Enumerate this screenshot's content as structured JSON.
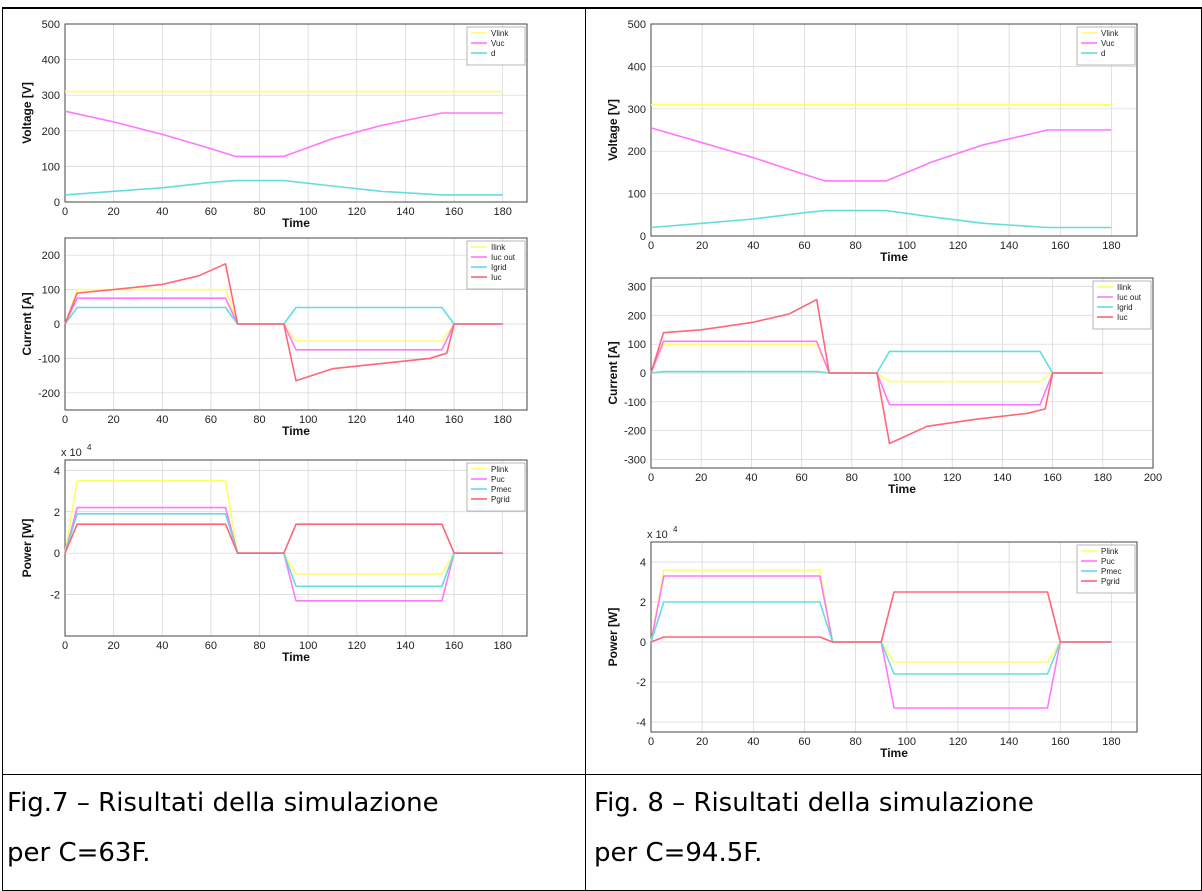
{
  "captions": {
    "left": {
      "line1": "Fig.7 – Risultati della simulazione",
      "line2": "per C=63F."
    },
    "right": {
      "line1": "Fig. 8 – Risultati della simulazione",
      "line2": "per C=94.5F."
    }
  },
  "chart_data": [
    {
      "id": "fig7-voltage",
      "type": "line",
      "xlabel": "Time",
      "ylabel": "Voltage [V]",
      "xlim": [
        0,
        190
      ],
      "ylim": [
        0,
        500
      ],
      "xticks": [
        0,
        20,
        40,
        60,
        80,
        100,
        120,
        140,
        160,
        180
      ],
      "yticks": [
        0,
        100,
        200,
        300,
        400,
        500
      ],
      "series": [
        {
          "name": "Vlink",
          "color": "#ffff66",
          "x": [
            0,
            180
          ],
          "y": [
            310,
            310
          ]
        },
        {
          "name": "Vuc",
          "color": "#ff77ff",
          "x": [
            0,
            20,
            40,
            60,
            70,
            90,
            110,
            130,
            155,
            180
          ],
          "y": [
            255,
            225,
            190,
            150,
            128,
            128,
            178,
            215,
            250,
            250
          ]
        },
        {
          "name": "d",
          "color": "#66dddd",
          "x": [
            0,
            20,
            40,
            60,
            70,
            90,
            110,
            130,
            155,
            180
          ],
          "y": [
            20,
            30,
            40,
            55,
            60,
            60,
            45,
            30,
            20,
            20
          ]
        }
      ]
    },
    {
      "id": "fig7-current",
      "type": "line",
      "xlabel": "Time",
      "ylabel": "Current [A]",
      "xlim": [
        0,
        190
      ],
      "ylim": [
        -250,
        250
      ],
      "xticks": [
        0,
        20,
        40,
        60,
        80,
        100,
        120,
        140,
        160,
        180
      ],
      "yticks": [
        -200,
        -100,
        0,
        100,
        200
      ],
      "series": [
        {
          "name": "Ilink",
          "color": "#ffff66",
          "x": [
            0,
            5,
            66,
            71,
            90,
            95,
            155,
            160,
            180
          ],
          "y": [
            0,
            100,
            100,
            0,
            0,
            -50,
            -50,
            0,
            0
          ]
        },
        {
          "name": "Iuc out",
          "color": "#ff77ff",
          "x": [
            0,
            5,
            66,
            71,
            90,
            95,
            155,
            160,
            180
          ],
          "y": [
            0,
            75,
            75,
            0,
            0,
            -75,
            -75,
            0,
            0
          ]
        },
        {
          "name": "Igrid",
          "color": "#66dddd",
          "x": [
            0,
            5,
            66,
            71,
            90,
            95,
            155,
            160,
            180
          ],
          "y": [
            0,
            48,
            48,
            0,
            0,
            48,
            48,
            0,
            0
          ]
        },
        {
          "name": "Iuc",
          "color": "#ff6677",
          "x": [
            0,
            5,
            20,
            40,
            55,
            66,
            71,
            90,
            95,
            110,
            130,
            150,
            157,
            160,
            180
          ],
          "y": [
            0,
            90,
            100,
            115,
            140,
            175,
            0,
            0,
            -165,
            -130,
            -115,
            -100,
            -85,
            0,
            0
          ]
        }
      ]
    },
    {
      "id": "fig7-power",
      "type": "line",
      "xlabel": "Time",
      "ylabel": "Power [W]",
      "exponent": "x 10",
      "exponent_sup": "4",
      "xlim": [
        0,
        190
      ],
      "ylim": [
        -4,
        4.5
      ],
      "xticks": [
        0,
        20,
        40,
        60,
        80,
        100,
        120,
        140,
        160,
        180
      ],
      "yticks": [
        -2,
        0,
        2,
        4
      ],
      "series": [
        {
          "name": "Plink",
          "color": "#ffff66",
          "x": [
            0,
            5,
            66,
            71,
            90,
            95,
            155,
            160,
            180
          ],
          "y": [
            0,
            3.5,
            3.5,
            0,
            0,
            -1.0,
            -1.0,
            0,
            0
          ]
        },
        {
          "name": "Puc",
          "color": "#ff77ff",
          "x": [
            0,
            5,
            66,
            71,
            90,
            95,
            155,
            160,
            180
          ],
          "y": [
            0,
            2.2,
            2.2,
            0,
            0,
            -2.3,
            -2.3,
            0,
            0
          ]
        },
        {
          "name": "Pmec",
          "color": "#66dddd",
          "x": [
            0,
            5,
            66,
            71,
            90,
            95,
            155,
            160,
            180
          ],
          "y": [
            0,
            1.9,
            1.9,
            0,
            0,
            -1.6,
            -1.6,
            0,
            0
          ]
        },
        {
          "name": "Pgrid",
          "color": "#ff6677",
          "x": [
            0,
            5,
            66,
            71,
            90,
            95,
            155,
            160,
            180
          ],
          "y": [
            0,
            1.4,
            1.4,
            0,
            0,
            1.4,
            1.4,
            0,
            0
          ]
        }
      ]
    },
    {
      "id": "fig8-voltage",
      "type": "line",
      "xlabel": "Time",
      "ylabel": "Voltage [V]",
      "xlim": [
        0,
        190
      ],
      "ylim": [
        0,
        500
      ],
      "xticks": [
        0,
        20,
        40,
        60,
        80,
        100,
        120,
        140,
        160,
        180
      ],
      "yticks": [
        0,
        100,
        200,
        300,
        400,
        500
      ],
      "series": [
        {
          "name": "Vlink",
          "color": "#ffff66",
          "x": [
            0,
            180
          ],
          "y": [
            310,
            310
          ]
        },
        {
          "name": "Vuc",
          "color": "#ff77ff",
          "x": [
            0,
            20,
            40,
            60,
            68,
            92,
            110,
            130,
            155,
            180
          ],
          "y": [
            255,
            220,
            185,
            145,
            130,
            130,
            175,
            215,
            250,
            250
          ]
        },
        {
          "name": "d",
          "color": "#66dddd",
          "x": [
            0,
            20,
            40,
            60,
            68,
            92,
            110,
            130,
            155,
            180
          ],
          "y": [
            20,
            30,
            40,
            55,
            60,
            60,
            45,
            30,
            20,
            20
          ]
        }
      ]
    },
    {
      "id": "fig8-current",
      "type": "line",
      "xlabel": "Time",
      "ylabel": "Current [A]",
      "xlim": [
        0,
        200
      ],
      "ylim": [
        -330,
        330
      ],
      "xticks": [
        0,
        20,
        40,
        60,
        80,
        100,
        120,
        140,
        160,
        180,
        200
      ],
      "yticks": [
        -300,
        -200,
        -100,
        0,
        100,
        200,
        300
      ],
      "series": [
        {
          "name": "Ilink",
          "color": "#ffff66",
          "x": [
            0,
            5,
            66,
            71,
            90,
            95,
            155,
            160,
            180
          ],
          "y": [
            0,
            100,
            100,
            0,
            0,
            -30,
            -30,
            0,
            0
          ]
        },
        {
          "name": "Iuc out",
          "color": "#ff77ff",
          "x": [
            0,
            5,
            66,
            71,
            90,
            95,
            155,
            160,
            180
          ],
          "y": [
            0,
            110,
            110,
            0,
            0,
            -110,
            -110,
            0,
            0
          ]
        },
        {
          "name": "Igrid",
          "color": "#66dddd",
          "x": [
            0,
            5,
            66,
            71,
            90,
            95,
            155,
            160,
            180
          ],
          "y": [
            0,
            5,
            5,
            0,
            0,
            75,
            75,
            0,
            0
          ]
        },
        {
          "name": "Iuc",
          "color": "#ff6677",
          "x": [
            0,
            5,
            20,
            40,
            55,
            66,
            71,
            90,
            95,
            110,
            130,
            150,
            157,
            160,
            180
          ],
          "y": [
            0,
            140,
            150,
            175,
            205,
            255,
            0,
            0,
            -245,
            -185,
            -160,
            -140,
            -125,
            0,
            0
          ]
        }
      ]
    },
    {
      "id": "fig8-power",
      "type": "line",
      "xlabel": "Time",
      "ylabel": "Power [W]",
      "exponent": "x 10",
      "exponent_sup": "4",
      "xlim": [
        0,
        190
      ],
      "ylim": [
        -4.5,
        5
      ],
      "xticks": [
        0,
        20,
        40,
        60,
        80,
        100,
        120,
        140,
        160,
        180
      ],
      "yticks": [
        -4,
        -2,
        0,
        2,
        4
      ],
      "series": [
        {
          "name": "Plink",
          "color": "#ffff66",
          "x": [
            0,
            5,
            66,
            71,
            90,
            95,
            155,
            160,
            180
          ],
          "y": [
            0,
            3.6,
            3.6,
            0,
            0,
            -1.0,
            -1.0,
            0,
            0
          ]
        },
        {
          "name": "Puc",
          "color": "#ff77ff",
          "x": [
            0,
            5,
            66,
            71,
            90,
            95,
            155,
            160,
            180
          ],
          "y": [
            0,
            3.3,
            3.3,
            0,
            0,
            -3.3,
            -3.3,
            0,
            0
          ]
        },
        {
          "name": "Pmec",
          "color": "#66dddd",
          "x": [
            0,
            5,
            66,
            71,
            90,
            95,
            155,
            160,
            180
          ],
          "y": [
            0,
            2.0,
            2.0,
            0,
            0,
            -1.6,
            -1.6,
            0,
            0
          ]
        },
        {
          "name": "Pgrid",
          "color": "#ff6677",
          "x": [
            0,
            5,
            66,
            71,
            90,
            95,
            155,
            160,
            180
          ],
          "y": [
            0,
            0.25,
            0.25,
            0,
            0,
            2.5,
            2.5,
            0,
            0
          ]
        }
      ]
    }
  ]
}
